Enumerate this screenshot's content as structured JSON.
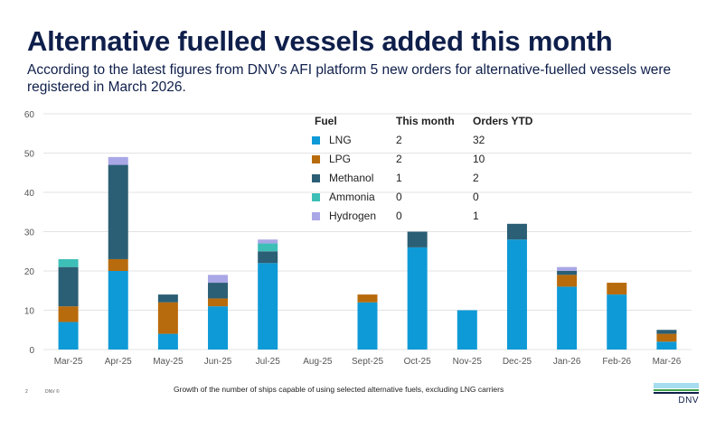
{
  "slide": {
    "title": "Alternative fuelled vessels added this month",
    "subtitle": "According to the latest figures from DNV’s AFI platform 5 new orders for alternative-fuelled vessels were registered in March 2026.",
    "footnote": "Growth of the number of ships capable of using selected alternative fuels, excluding LNG carriers",
    "page_number": "2",
    "copyright": "DNV ©",
    "logo_text": "DNV"
  },
  "legend_table": {
    "headers": [
      "Fuel",
      "This month",
      "Orders YTD"
    ],
    "rows": [
      {
        "fuel": "LNG",
        "this_month": "2",
        "ytd": "32",
        "color": "#0e9ad7"
      },
      {
        "fuel": "LPG",
        "this_month": "2",
        "ytd": "10",
        "color": "#b86b0c"
      },
      {
        "fuel": "Methanol",
        "this_month": "1",
        "ytd": "2",
        "color": "#2b5f75"
      },
      {
        "fuel": "Ammonia",
        "this_month": "0",
        "ytd": "0",
        "color": "#3dbfb7"
      },
      {
        "fuel": "Hydrogen",
        "this_month": "0",
        "ytd": "1",
        "color": "#a9a7e6"
      }
    ]
  },
  "chart_data": {
    "type": "bar",
    "stacked": true,
    "title": "",
    "xlabel": "",
    "ylabel": "",
    "ylim": [
      0,
      60
    ],
    "yticks": [
      0,
      10,
      20,
      30,
      40,
      50,
      60
    ],
    "grid": true,
    "legend": "top-center (table)",
    "categories": [
      "Mar-25",
      "Apr-25",
      "May-25",
      "Jun-25",
      "Jul-25",
      "Aug-25",
      "Sept-25",
      "Oct-25",
      "Nov-25",
      "Dec-25",
      "Jan-26",
      "Feb-26",
      "Mar-26"
    ],
    "series": [
      {
        "name": "LNG",
        "color": "#0e9ad7",
        "values": [
          7,
          20,
          4,
          11,
          22,
          0,
          12,
          26,
          10,
          28,
          16,
          14,
          2
        ]
      },
      {
        "name": "LPG",
        "color": "#b86b0c",
        "values": [
          4,
          3,
          8,
          2,
          0,
          0,
          2,
          0,
          0,
          0,
          3,
          3,
          2
        ]
      },
      {
        "name": "Methanol",
        "color": "#2b5f75",
        "values": [
          10,
          24,
          2,
          4,
          3,
          0,
          0,
          4,
          0,
          4,
          1,
          0,
          1
        ]
      },
      {
        "name": "Ammonia",
        "color": "#3dbfb7",
        "values": [
          2,
          0,
          0,
          0,
          2,
          0,
          0,
          0,
          0,
          0,
          0,
          0,
          0
        ]
      },
      {
        "name": "Hydrogen",
        "color": "#a9a7e6",
        "values": [
          0,
          2,
          0,
          2,
          1,
          0,
          0,
          0,
          0,
          0,
          1,
          0,
          0
        ]
      }
    ]
  }
}
